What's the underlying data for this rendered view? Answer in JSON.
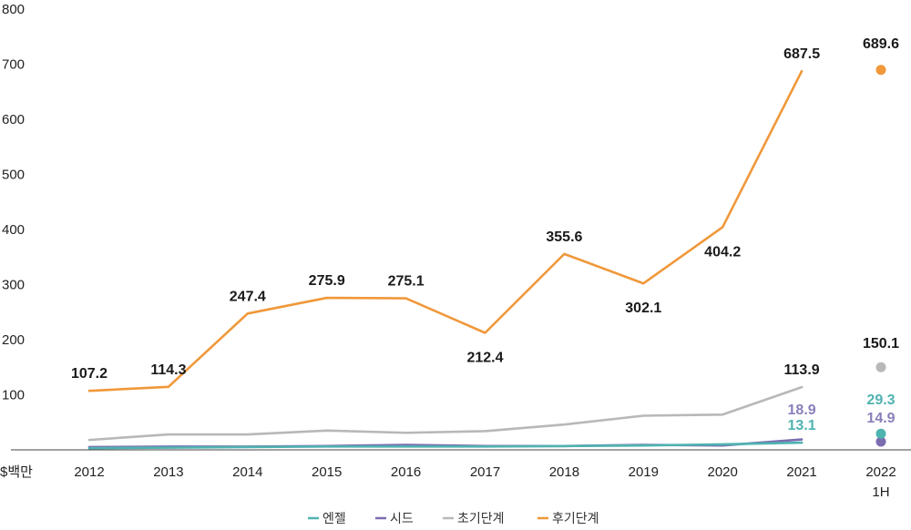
{
  "chart_data": {
    "type": "line",
    "title": "",
    "xlabel": "",
    "ylabel": "$백만",
    "ylim": [
      0,
      800
    ],
    "yticks": [
      "",
      "100",
      "200",
      "300",
      "400",
      "500",
      "600",
      "700",
      "800"
    ],
    "ytick_values": [
      0,
      100,
      200,
      300,
      400,
      500,
      600,
      700,
      800
    ],
    "x": [
      "2012",
      "2013",
      "2014",
      "2015",
      "2016",
      "2017",
      "2018",
      "2019",
      "2020",
      "2021"
    ],
    "extra_category": {
      "label_line1": "2022",
      "label_line2": "1H"
    },
    "grid": false,
    "legend_position": "bottom-center",
    "series": [
      {
        "name": "엔젤",
        "color": "#4fb3b0",
        "values": [
          3,
          4,
          5,
          6,
          6,
          6,
          7,
          8,
          10,
          13.1
        ],
        "point_2022": 29.3
      },
      {
        "name": "시드",
        "color": "#7b6db0",
        "values": [
          5,
          6,
          6,
          7,
          9,
          7,
          7,
          9,
          8,
          18.9
        ],
        "point_2022": 14.9
      },
      {
        "name": "초기단계",
        "color": "#b8b8b8",
        "values": [
          18,
          28,
          28,
          35,
          31,
          34,
          46,
          62,
          64,
          113.9
        ],
        "point_2022": 150.1
      },
      {
        "name": "후기단계",
        "color": "#f0983a",
        "values": [
          107.2,
          114.3,
          247.4,
          275.9,
          275.1,
          212.4,
          355.6,
          302.1,
          404.2,
          687.5
        ],
        "point_2022": 689.6
      }
    ],
    "labels": {
      "late": [
        "107.2",
        "114.3",
        "247.4",
        "275.9",
        "275.1",
        "212.4",
        "355.6",
        "302.1",
        "404.2",
        "687.5"
      ],
      "late_2022": "689.6",
      "early_2021": "113.9",
      "early_2022": "150.1",
      "seed_2021": "18.9",
      "angel_2021": "13.1",
      "angel_2022": "29.3",
      "seed_2022": "14.9"
    }
  }
}
